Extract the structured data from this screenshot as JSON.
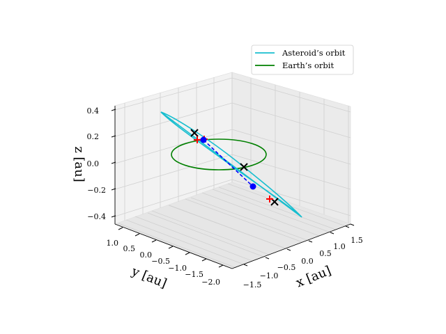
{
  "chart_data": {
    "type": "line3d",
    "title": "",
    "xlabel": "x [au]",
    "ylabel": "y [au]",
    "zlabel": "z [au]",
    "xlim": [
      -1.8,
      1.8
    ],
    "ylim": [
      -2.2,
      1.2
    ],
    "zlim": [
      -0.45,
      0.45
    ],
    "xticks": [
      "−1.5",
      "−1.0",
      "−0.5",
      "0.0",
      "0.5",
      "1.0",
      "1.5"
    ],
    "yticks": [
      "1.0",
      "0.5",
      "0.0",
      "−0.5",
      "−1.0",
      "−1.5",
      "−2.0"
    ],
    "zticks": [
      "0.4",
      "0.2",
      "0.0",
      "−0.2",
      "−0.4"
    ],
    "grid": true,
    "legend_position": "top-right",
    "series": [
      {
        "name": "Asteroid’s orbit",
        "color": "#17becf",
        "style": "solid"
      },
      {
        "name": "Earth’s orbit",
        "color": "#008000",
        "style": "solid"
      }
    ],
    "dashed_color": "#0000ff",
    "markers": [
      {
        "kind": "x-black",
        "color": "#000000"
      },
      {
        "kind": "plus-red",
        "color": "#ff0000"
      },
      {
        "kind": "dot-blue",
        "color": "#0000ff"
      }
    ]
  }
}
